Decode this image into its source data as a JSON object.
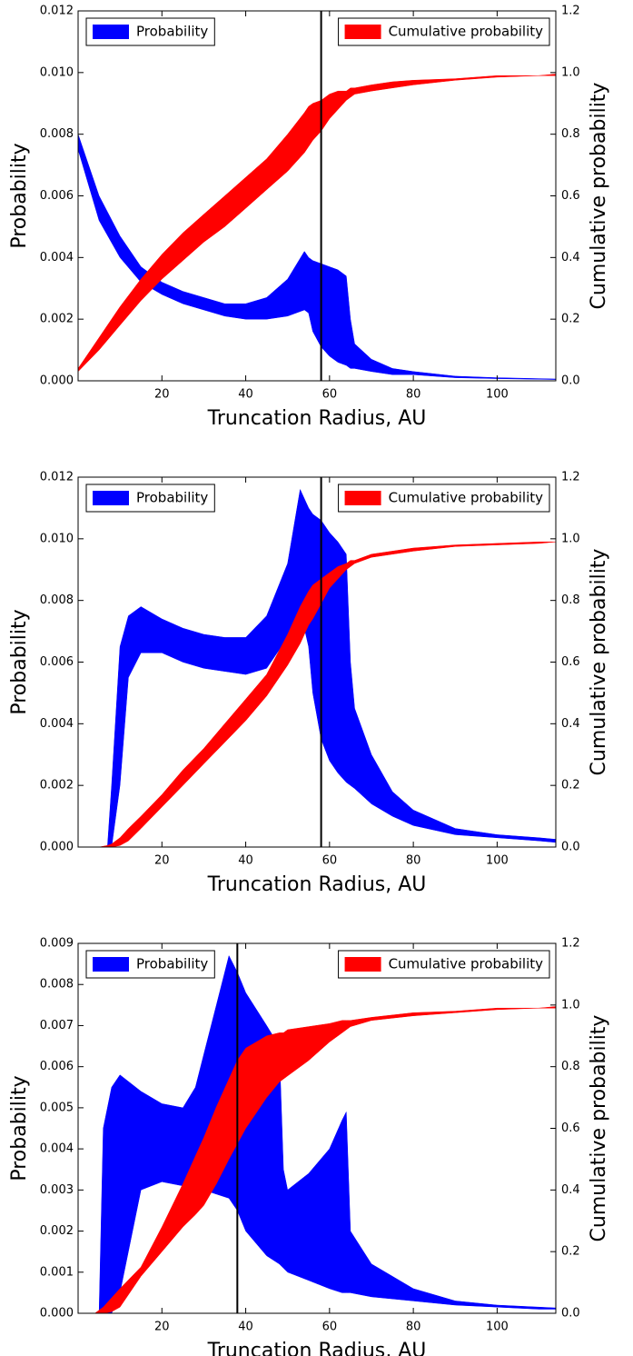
{
  "chart_data": [
    {
      "type": "band",
      "xlabel": "Truncation Radius, AU",
      "ylabel": "Probability",
      "y2label": "Cumulative probability",
      "xlim": [
        0,
        114
      ],
      "xticks": [
        20,
        40,
        60,
        80,
        100
      ],
      "ylim": [
        0,
        0.012
      ],
      "yticks": [
        {
          "value": 0,
          "label": "0.000"
        },
        0.002,
        0.004,
        0.006,
        0.008,
        {
          "value": 0.01,
          "label": "0.010"
        },
        0.012
      ],
      "y2lim": [
        0,
        1.2
      ],
      "y2ticks": [
        {
          "value": 0,
          "label": "0.0"
        },
        0.2,
        0.4,
        0.6,
        0.8,
        {
          "value": 1,
          "label": "1.0"
        },
        1.2
      ],
      "vline": 58,
      "x": [
        0,
        5,
        10,
        15,
        20,
        25,
        30,
        35,
        40,
        45,
        50,
        54,
        55,
        56,
        58,
        60,
        62,
        64,
        65,
        66,
        70,
        75,
        80,
        90,
        100,
        110,
        114
      ],
      "series": [
        {
          "name": "Probability",
          "color": "#0000ff",
          "legend_loc": "upper left",
          "upper": [
            0.008,
            0.006,
            0.0047,
            0.0037,
            0.0032,
            0.0029,
            0.0027,
            0.0025,
            0.0025,
            0.0027,
            0.0033,
            0.0042,
            0.004,
            0.0039,
            0.0038,
            0.0037,
            0.0036,
            0.0034,
            0.002,
            0.0012,
            0.0007,
            0.0004,
            0.0003,
            0.00015,
            0.0001,
            7e-05,
            6e-05
          ],
          "lower": [
            0.0075,
            0.0052,
            0.004,
            0.0032,
            0.0028,
            0.0025,
            0.0023,
            0.0021,
            0.002,
            0.002,
            0.0021,
            0.0023,
            0.0022,
            0.0016,
            0.0011,
            0.0008,
            0.0006,
            0.0005,
            0.0004,
            0.0004,
            0.0003,
            0.0002,
            0.0002,
            0.0001,
            7e-05,
            5e-05,
            4e-05
          ]
        },
        {
          "name": "Cumulative probability",
          "color": "#ff0000",
          "axis": "y2",
          "legend_loc": "upper right",
          "upper": [
            0.04,
            0.14,
            0.24,
            0.33,
            0.41,
            0.48,
            0.54,
            0.6,
            0.66,
            0.72,
            0.8,
            0.87,
            0.89,
            0.9,
            0.91,
            0.93,
            0.94,
            0.94,
            0.95,
            0.95,
            0.96,
            0.97,
            0.975,
            0.98,
            0.99,
            0.99,
            0.995
          ],
          "lower": [
            0.03,
            0.1,
            0.18,
            0.26,
            0.33,
            0.39,
            0.45,
            0.5,
            0.56,
            0.62,
            0.68,
            0.74,
            0.76,
            0.78,
            0.81,
            0.85,
            0.88,
            0.91,
            0.92,
            0.93,
            0.94,
            0.95,
            0.96,
            0.975,
            0.985,
            0.99,
            0.99
          ]
        }
      ]
    },
    {
      "type": "band",
      "xlabel": "Truncation Radius, AU",
      "ylabel": "Probability",
      "y2label": "Cumulative probability",
      "xlim": [
        0,
        114
      ],
      "xticks": [
        20,
        40,
        60,
        80,
        100
      ],
      "ylim": [
        0,
        0.012
      ],
      "yticks": [
        {
          "value": 0,
          "label": "0.000"
        },
        0.002,
        0.004,
        0.006,
        0.008,
        {
          "value": 0.01,
          "label": "0.010"
        },
        0.012
      ],
      "y2lim": [
        0,
        1.2
      ],
      "y2ticks": [
        {
          "value": 0,
          "label": "0.0"
        },
        0.2,
        0.4,
        0.6,
        0.8,
        {
          "value": 1,
          "label": "1.0"
        },
        1.2
      ],
      "vline": 58,
      "x": [
        0,
        5,
        7,
        8,
        10,
        12,
        15,
        20,
        25,
        30,
        35,
        40,
        45,
        50,
        53,
        55,
        56,
        58,
        60,
        62,
        64,
        65,
        66,
        70,
        75,
        80,
        90,
        100,
        110,
        114
      ],
      "series": [
        {
          "name": "Probability",
          "color": "#0000ff",
          "legend_loc": "upper left",
          "upper": [
            0,
            0,
            0,
            0.002,
            0.0065,
            0.0075,
            0.0078,
            0.0074,
            0.0071,
            0.0069,
            0.0068,
            0.0068,
            0.0075,
            0.0092,
            0.0116,
            0.011,
            0.0108,
            0.0106,
            0.0102,
            0.0099,
            0.0095,
            0.006,
            0.0045,
            0.003,
            0.0018,
            0.0012,
            0.0006,
            0.0004,
            0.0003,
            0.00025
          ],
          "lower": [
            0,
            0,
            0,
            0,
            0.002,
            0.0055,
            0.0063,
            0.0063,
            0.006,
            0.0058,
            0.0057,
            0.0056,
            0.0058,
            0.0068,
            0.0077,
            0.0065,
            0.005,
            0.0035,
            0.0028,
            0.0024,
            0.0021,
            0.002,
            0.0019,
            0.0014,
            0.001,
            0.0007,
            0.0004,
            0.0003,
            0.0002,
            0.00015
          ]
        },
        {
          "name": "Cumulative probability",
          "color": "#ff0000",
          "axis": "y2",
          "legend_loc": "upper right",
          "upper": [
            0,
            0,
            0.005,
            0.01,
            0.03,
            0.06,
            0.1,
            0.17,
            0.25,
            0.32,
            0.4,
            0.48,
            0.56,
            0.69,
            0.78,
            0.83,
            0.85,
            0.87,
            0.89,
            0.91,
            0.92,
            0.93,
            0.93,
            0.95,
            0.96,
            0.97,
            0.98,
            0.985,
            0.99,
            0.99
          ],
          "lower": [
            0,
            0,
            0,
            0,
            0.005,
            0.02,
            0.06,
            0.13,
            0.2,
            0.27,
            0.34,
            0.41,
            0.49,
            0.59,
            0.66,
            0.72,
            0.74,
            0.79,
            0.84,
            0.87,
            0.9,
            0.91,
            0.92,
            0.94,
            0.95,
            0.96,
            0.975,
            0.98,
            0.985,
            0.99
          ]
        }
      ]
    },
    {
      "type": "band",
      "xlabel": "Truncation Radius, AU",
      "ylabel": "Probability",
      "y2label": "Cumulative probability",
      "xlim": [
        0,
        114
      ],
      "xticks": [
        20,
        40,
        60,
        80,
        100
      ],
      "ylim": [
        0,
        0.009
      ],
      "yticks": [
        {
          "value": 0,
          "label": "0.000"
        },
        0.001,
        0.002,
        0.003,
        0.004,
        0.005,
        0.006,
        0.007,
        0.008,
        0.009
      ],
      "y2lim": [
        0,
        1.2
      ],
      "y2ticks": [
        {
          "value": 0,
          "label": "0.0"
        },
        0.2,
        0.4,
        0.6,
        0.8,
        {
          "value": 1,
          "label": "1.0"
        },
        1.2
      ],
      "vline": 38,
      "x": [
        0,
        4,
        5,
        6,
        8,
        10,
        15,
        20,
        25,
        28,
        30,
        33,
        36,
        38,
        40,
        45,
        48,
        49,
        50,
        55,
        60,
        63,
        64,
        65,
        70,
        80,
        90,
        100,
        110,
        114
      ],
      "series": [
        {
          "name": "Probability",
          "color": "#0000ff",
          "legend_loc": "upper left",
          "upper": [
            0,
            0,
            0,
            0.0045,
            0.0055,
            0.0058,
            0.0054,
            0.0051,
            0.005,
            0.0055,
            0.0063,
            0.0075,
            0.0087,
            0.0083,
            0.0078,
            0.007,
            0.0065,
            0.0035,
            0.003,
            0.0034,
            0.004,
            0.0047,
            0.0049,
            0.002,
            0.0012,
            0.0006,
            0.0003,
            0.0002,
            0.00015,
            0.00013
          ],
          "lower": [
            0,
            0,
            0,
            0,
            0,
            0.0005,
            0.003,
            0.0032,
            0.0031,
            0.003,
            0.003,
            0.0029,
            0.0028,
            0.0025,
            0.002,
            0.0014,
            0.0012,
            0.0011,
            0.001,
            0.0008,
            0.0006,
            0.0005,
            0.0005,
            0.0005,
            0.0004,
            0.0003,
            0.0002,
            0.00015,
            0.0001,
            0.0001
          ]
        },
        {
          "name": "Cumulative probability",
          "color": "#ff0000",
          "axis": "y2",
          "legend_loc": "upper right",
          "upper": [
            0,
            0,
            0.01,
            0.02,
            0.05,
            0.08,
            0.15,
            0.28,
            0.42,
            0.51,
            0.57,
            0.67,
            0.76,
            0.82,
            0.86,
            0.9,
            0.91,
            0.91,
            0.92,
            0.93,
            0.94,
            0.95,
            0.95,
            0.95,
            0.96,
            0.975,
            0.98,
            0.99,
            0.99,
            0.995
          ],
          "lower": [
            0,
            0,
            0,
            0,
            0.005,
            0.02,
            0.12,
            0.2,
            0.28,
            0.32,
            0.35,
            0.42,
            0.5,
            0.55,
            0.6,
            0.7,
            0.75,
            0.76,
            0.77,
            0.82,
            0.88,
            0.91,
            0.92,
            0.93,
            0.95,
            0.965,
            0.975,
            0.985,
            0.99,
            0.99
          ]
        }
      ]
    }
  ]
}
